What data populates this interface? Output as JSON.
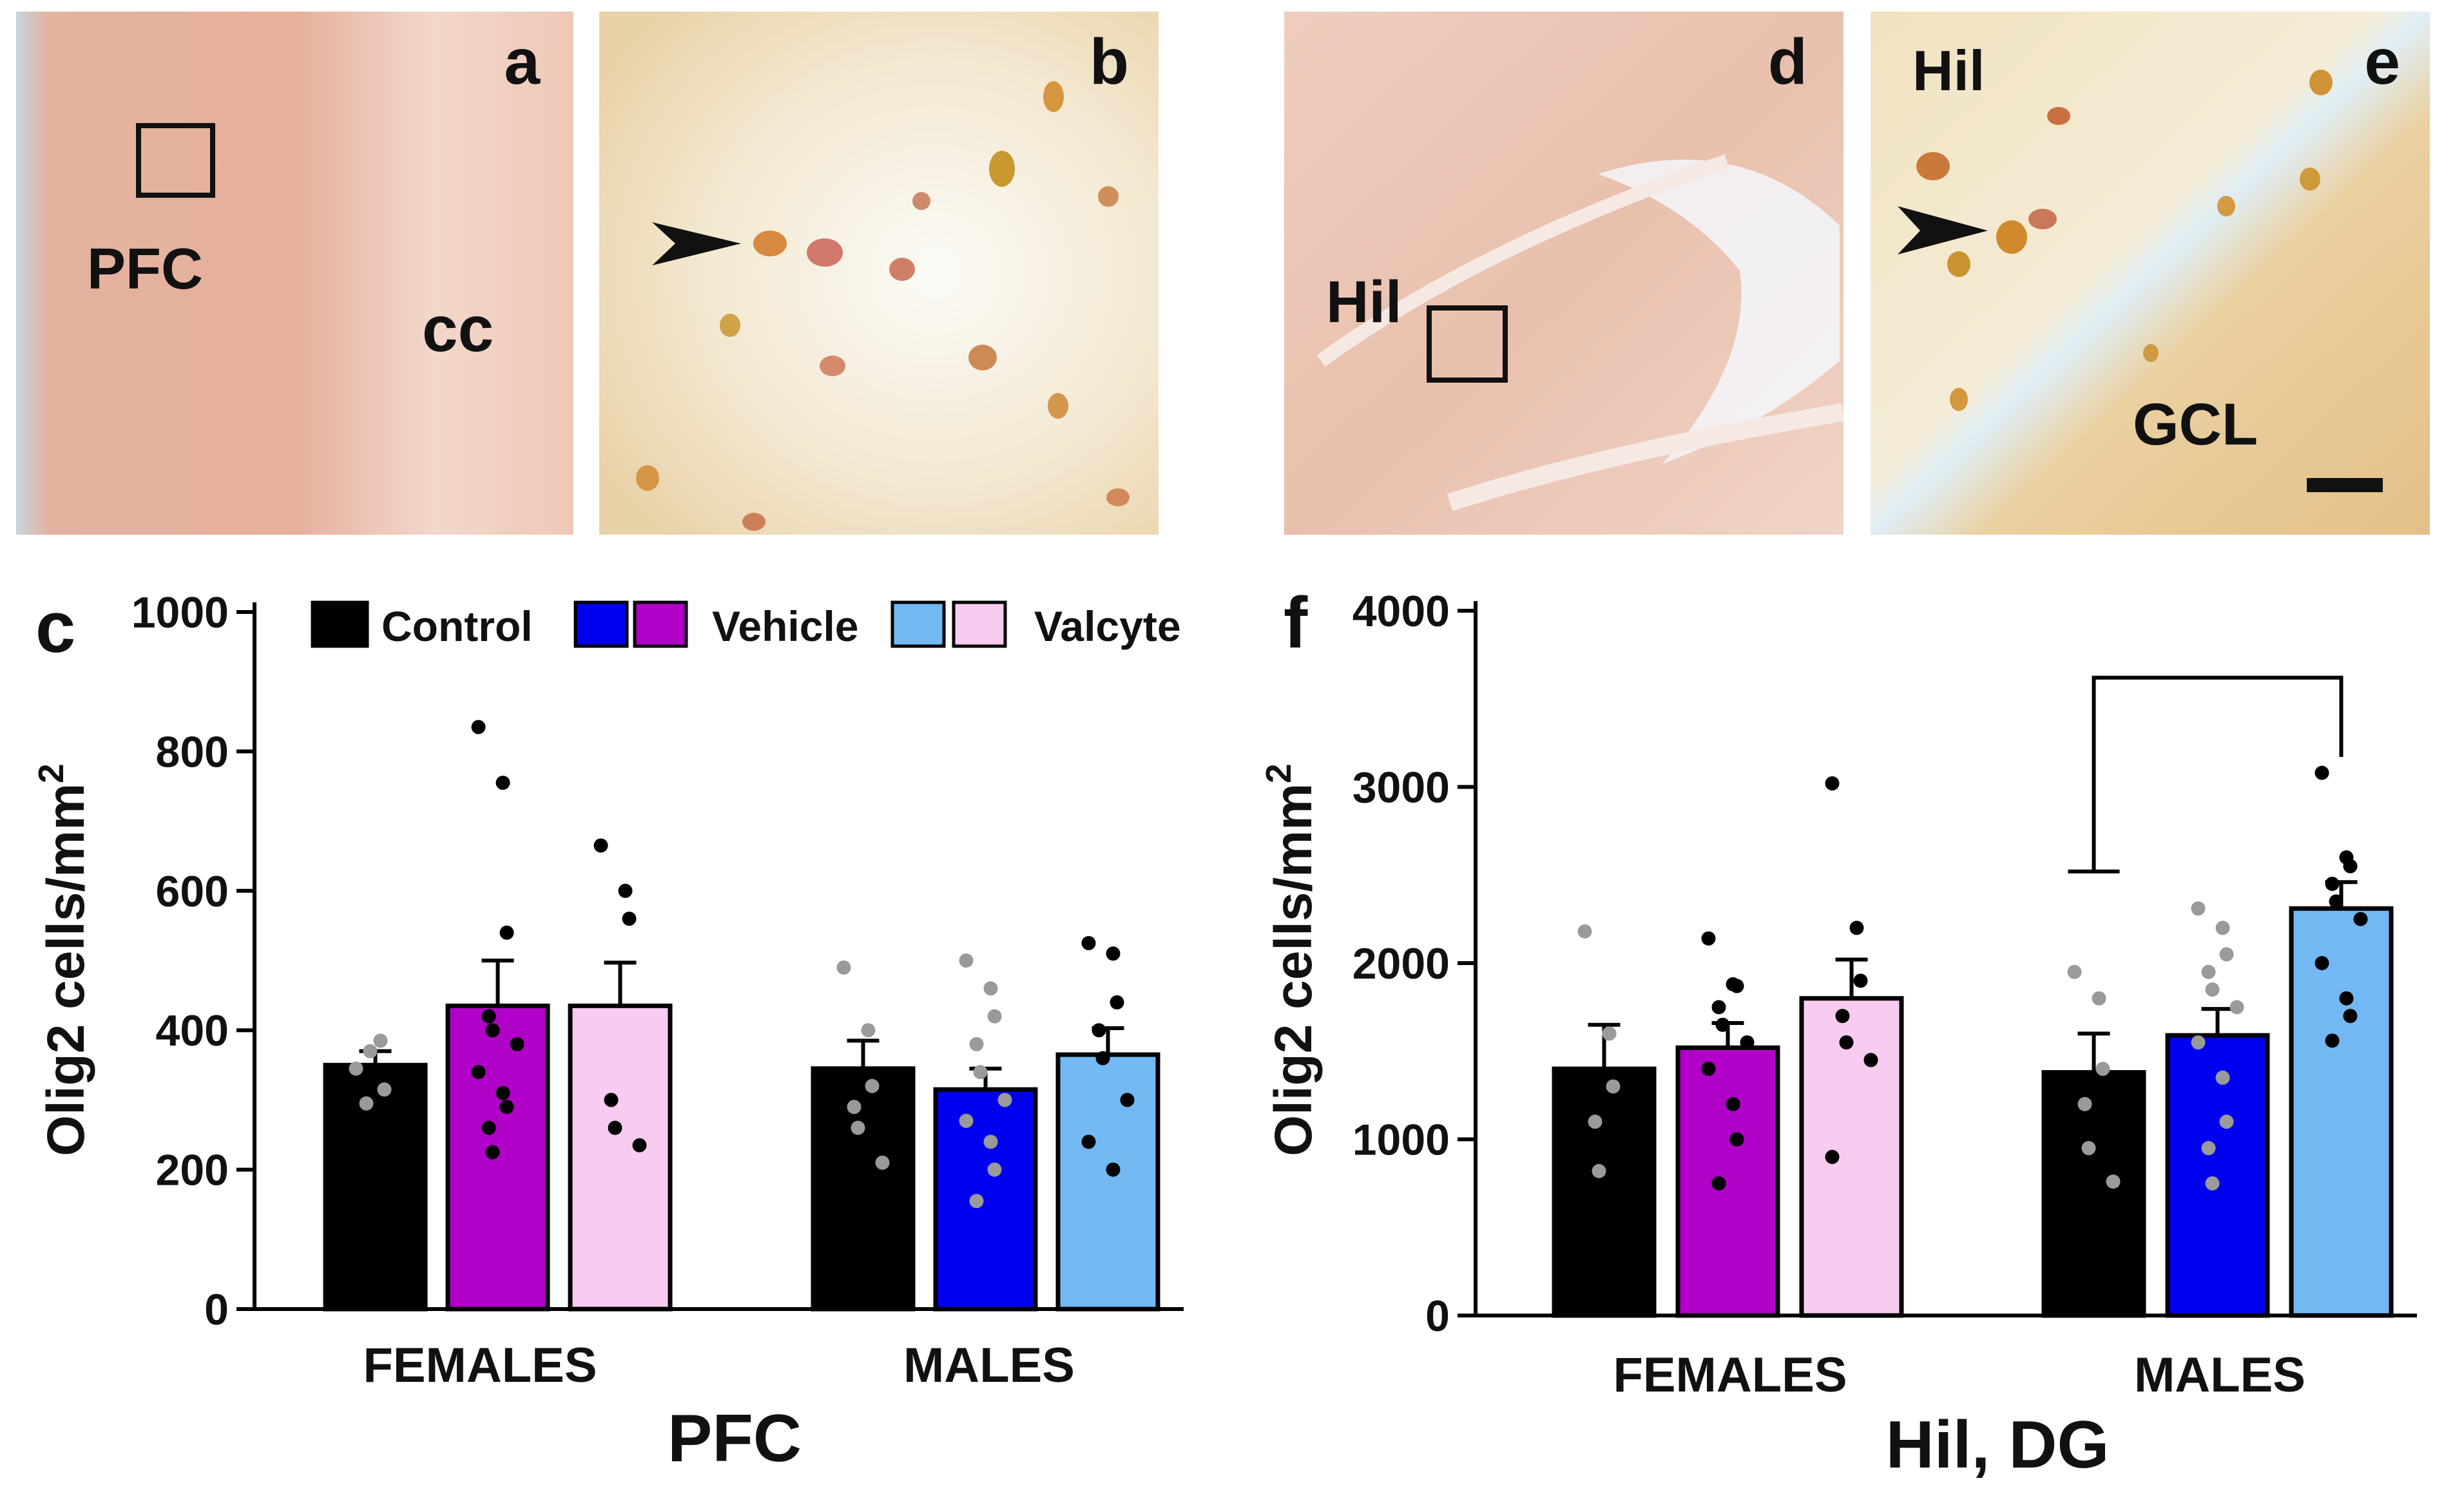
{
  "micrographs": [
    {
      "id": "a",
      "labels": [
        "PFC",
        "cc"
      ],
      "bg": "#e9b9a6"
    },
    {
      "id": "b",
      "labels": [],
      "bg": "#f0dfc5"
    },
    {
      "id": "d",
      "labels": [
        "Hil"
      ],
      "bg": "#ebc4b2"
    },
    {
      "id": "e",
      "labels": [
        "Hil",
        "GCL"
      ],
      "bg": "#eed7b3"
    }
  ],
  "colors": {
    "control": "#000000",
    "vehicle_female": "#b100c8",
    "vehicle_male": "#0000f0",
    "valcyte_female": "#f8cbf0",
    "valcyte_male": "#72b9f4",
    "dot_dark": "#000000",
    "dot_light": "#9a9a9a"
  },
  "legend": {
    "control": "Control",
    "vehicle": "Vehicle",
    "valcyte": "Valcyte"
  },
  "chart_data": [
    {
      "panel": "c",
      "type": "bar",
      "title": "",
      "xlabel": "PFC",
      "ylabel": "Olig2 cells/mm",
      "ylabel_sup": "2",
      "ylim": [
        0,
        1000
      ],
      "yticks": [
        0,
        200,
        400,
        600,
        800,
        1000
      ],
      "groups": [
        "FEMALES",
        "MALES"
      ],
      "series": [
        {
          "name": "Control",
          "values": [
            350,
            345
          ],
          "errors": [
            20,
            40
          ]
        },
        {
          "name": "Vehicle",
          "values": [
            435,
            315
          ],
          "errors": [
            65,
            30
          ]
        },
        {
          "name": "Valcyte",
          "values": [
            435,
            365
          ],
          "errors": [
            62,
            38
          ]
        }
      ],
      "points": [
        [
          [
            345,
            385,
            315,
            295,
            370
          ],
          [
            490,
            400,
            320,
            290,
            260,
            210
          ]
        ],
        [
          [
            835,
            755,
            540,
            420,
            400,
            380,
            340,
            310,
            290,
            260,
            225
          ],
          [
            500,
            460,
            420,
            380,
            340,
            300,
            270,
            240,
            200,
            155
          ]
        ],
        [
          [
            665,
            600,
            560,
            300,
            260,
            235
          ],
          [
            525,
            510,
            440,
            400,
            360,
            300,
            240,
            200
          ]
        ]
      ],
      "significance": null
    },
    {
      "panel": "f",
      "type": "bar",
      "title": "",
      "xlabel": "Hil, DG",
      "ylabel": "Olig2 cells/mm",
      "ylabel_sup": "2",
      "ylim": [
        0,
        4000
      ],
      "yticks": [
        0,
        1000,
        2000,
        3000,
        4000
      ],
      "groups": [
        "FEMALES",
        "MALES"
      ],
      "series": [
        {
          "name": "Control",
          "values": [
            1400,
            1380
          ],
          "errors": [
            250,
            220
          ]
        },
        {
          "name": "Vehicle",
          "values": [
            1520,
            1590
          ],
          "errors": [
            140,
            150
          ]
        },
        {
          "name": "Valcyte",
          "values": [
            1800,
            2310
          ],
          "errors": [
            220,
            150
          ]
        }
      ],
      "points": [
        [
          [
            2180,
            1600,
            1300,
            1100,
            820
          ],
          [
            1950,
            1800,
            1400,
            1200,
            950,
            760
          ]
        ],
        [
          [
            2140,
            1880,
            1870,
            1750,
            1650,
            1550,
            1400,
            1200,
            1000,
            750
          ],
          [
            2310,
            2200,
            2050,
            1950,
            1850,
            1750,
            1550,
            1350,
            1100,
            950,
            750
          ]
        ],
        [
          [
            3020,
            2200,
            1900,
            1700,
            1550,
            1450,
            900
          ],
          [
            3080,
            2600,
            2550,
            2450,
            2350,
            2250,
            2000,
            1800,
            1700,
            1560
          ]
        ]
      ],
      "significance": {
        "groups": "MALES",
        "from": "Control",
        "to": "Valcyte"
      }
    }
  ]
}
